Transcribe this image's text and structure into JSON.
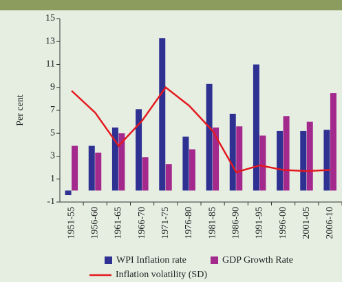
{
  "chart_data": {
    "type": "bar_line",
    "ylabel": "Per cent",
    "categories": [
      "1951-55",
      "1956-60",
      "1961-65",
      "1966-70",
      "1971-75",
      "1976-80",
      "1981-85",
      "1986-90",
      "1991-95",
      "1996-00",
      "2001-05",
      "2006-10"
    ],
    "series": [
      {
        "name": "WPI Inflation rate",
        "type": "bar",
        "color": "#2e3192",
        "values": [
          -0.4,
          3.9,
          5.5,
          7.1,
          13.3,
          4.7,
          9.3,
          6.7,
          11.0,
          5.2,
          5.2,
          5.3
        ]
      },
      {
        "name": "GDP Growth Rate",
        "type": "bar",
        "color": "#a3298c",
        "values": [
          3.9,
          3.3,
          5.0,
          2.9,
          2.3,
          3.6,
          5.5,
          5.6,
          4.8,
          6.5,
          6.0,
          8.5
        ]
      },
      {
        "name": "Inflation volatility (SD)",
        "type": "line",
        "color": "#e3191f",
        "values": [
          8.7,
          6.8,
          3.9,
          6.1,
          9.0,
          7.4,
          5.2,
          1.6,
          2.2,
          1.8,
          1.7,
          1.8
        ]
      }
    ],
    "ylim": [
      -1,
      15
    ],
    "yticks": [
      -1,
      1,
      3,
      5,
      7,
      9,
      11,
      13,
      15
    ]
  }
}
